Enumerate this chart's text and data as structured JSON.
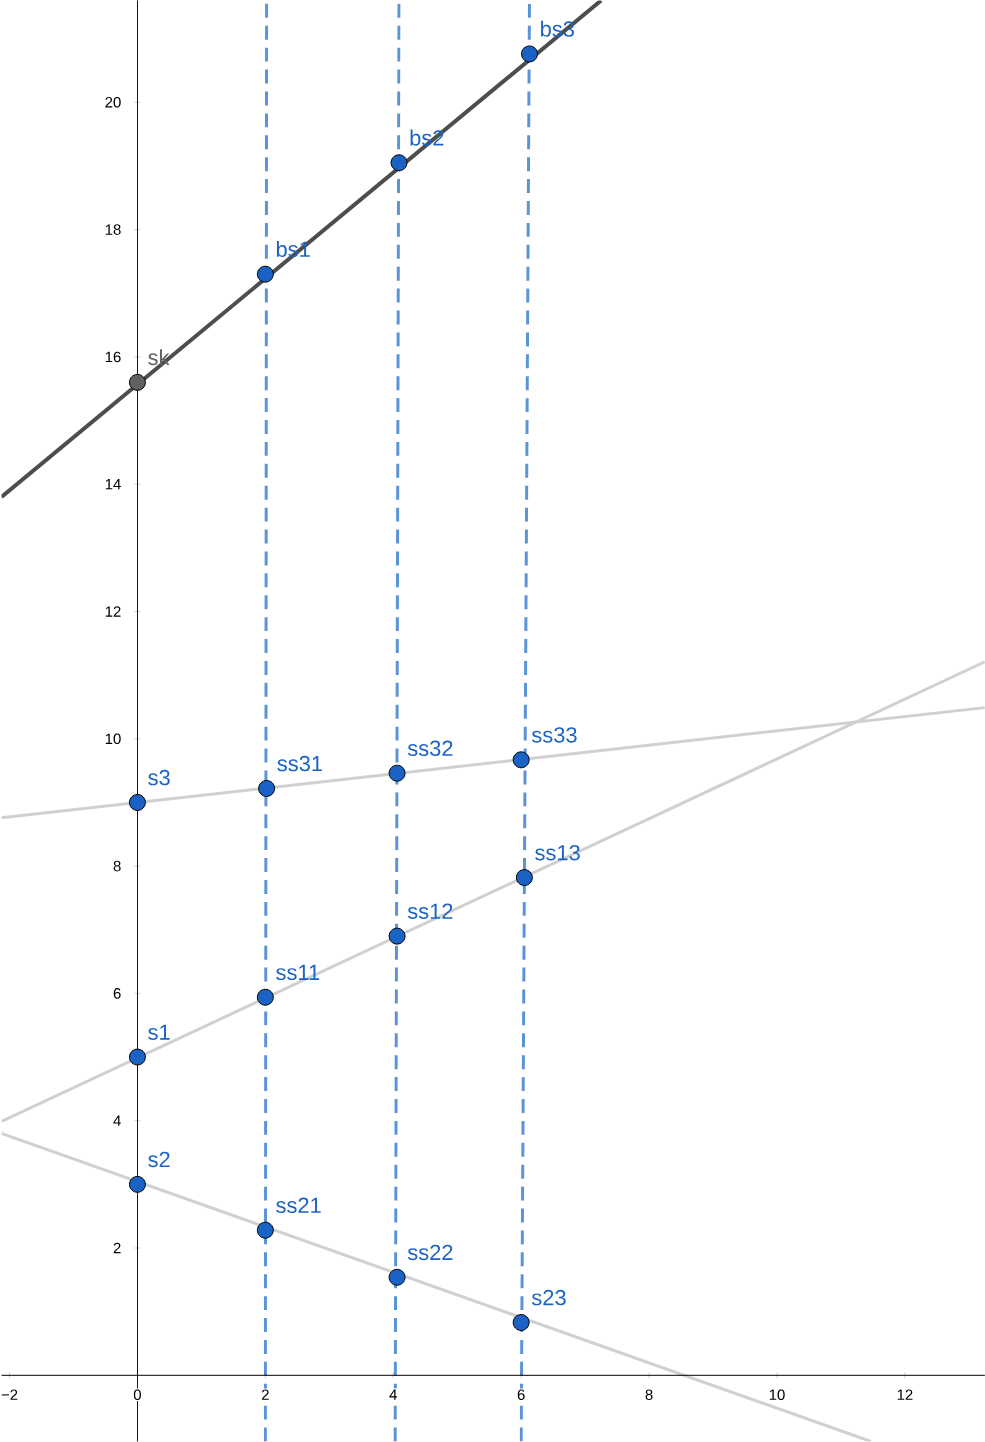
{
  "chart_data": {
    "type": "scatter",
    "xlim": [
      -2.125,
      13.25
    ],
    "ylim": [
      -1.04,
      21.6
    ],
    "xticks": [
      {
        "value": -2,
        "label": "−2"
      },
      0,
      2,
      4,
      6,
      8,
      10,
      12
    ],
    "yticks": [
      2,
      4,
      6,
      8,
      10,
      12,
      14,
      16,
      18,
      20
    ],
    "series": [
      {
        "type": "line",
        "color": "#4d4d4d",
        "x": [
          -2.125,
          7.25
        ],
        "values": [
          13.8,
          21.6
        ],
        "line_style": "solid",
        "marker": "none"
      },
      {
        "type": "line",
        "color": "#d0d0d0",
        "x": [
          -2.125,
          13.25
        ],
        "values": [
          8.76,
          10.49
        ],
        "line_style": "solid",
        "marker": "none"
      },
      {
        "type": "line",
        "color": "#d0d0d0",
        "x": [
          -2.125,
          13.25
        ],
        "values": [
          3.99,
          11.21
        ],
        "line_style": "solid",
        "marker": "none"
      },
      {
        "type": "line",
        "color": "#d0d0d0",
        "x": [
          -2.125,
          11.47
        ],
        "values": [
          3.8,
          -1.04
        ],
        "line_style": "solid",
        "marker": "none"
      },
      {
        "type": "line",
        "color": "#5b94d6",
        "x": [
          2.0,
          2.02
        ],
        "values": [
          -1.04,
          21.6
        ],
        "line_style": "dashed",
        "marker": "none"
      },
      {
        "type": "line",
        "color": "#5b94d6",
        "x": [
          4.03,
          4.09
        ],
        "values": [
          -1.04,
          21.6
        ],
        "line_style": "dashed",
        "marker": "none"
      },
      {
        "type": "line",
        "color": "#5b94d6",
        "x": [
          6.0,
          6.13
        ],
        "values": [
          -1.04,
          21.6
        ],
        "line_style": "dashed",
        "marker": "none"
      },
      {
        "type": "scatter",
        "marker": "circle",
        "x": [
          0,
          2,
          4.09,
          6.13,
          0,
          2.02,
          4.06,
          6.0,
          0,
          2,
          4.06,
          6.05,
          0,
          2,
          4.06,
          6.0
        ],
        "values": [
          15.6,
          17.3,
          19.05,
          20.76,
          9.0,
          9.22,
          9.46,
          9.67,
          5.0,
          5.94,
          6.9,
          7.82,
          3.0,
          2.28,
          1.54,
          0.83
        ],
        "colors": [
          "#616161",
          "#1a63c4",
          "#1a63c4",
          "#1a63c4",
          "#1a63c4",
          "#1a63c4",
          "#1a63c4",
          "#1a63c4",
          "#1a63c4",
          "#1a63c4",
          "#1a63c4",
          "#1a63c4",
          "#1a63c4",
          "#1a63c4",
          "#1a63c4",
          "#1a63c4"
        ]
      }
    ],
    "annotations": [
      {
        "text": "sk",
        "x": 0,
        "y": 15.6
      },
      {
        "text": "bs1",
        "x": 2,
        "y": 17.3
      },
      {
        "text": "bs2",
        "x": 4.09,
        "y": 19.05
      },
      {
        "text": "bs3",
        "x": 6.13,
        "y": 20.76
      },
      {
        "text": "s3",
        "x": 0,
        "y": 9.0
      },
      {
        "text": "ss31",
        "x": 2.02,
        "y": 9.22
      },
      {
        "text": "ss32",
        "x": 4.06,
        "y": 9.46
      },
      {
        "text": "ss33",
        "x": 6.0,
        "y": 9.67
      },
      {
        "text": "s1",
        "x": 0,
        "y": 5.0
      },
      {
        "text": "ss11",
        "x": 2,
        "y": 5.94
      },
      {
        "text": "ss12",
        "x": 4.06,
        "y": 6.9
      },
      {
        "text": "ss13",
        "x": 6.05,
        "y": 7.82
      },
      {
        "text": "s2",
        "x": 0,
        "y": 3.0
      },
      {
        "text": "ss21",
        "x": 2,
        "y": 2.28
      },
      {
        "text": "ss22",
        "x": 4.06,
        "y": 1.54
      },
      {
        "text": "s23",
        "x": 6.0,
        "y": 0.83
      }
    ]
  }
}
